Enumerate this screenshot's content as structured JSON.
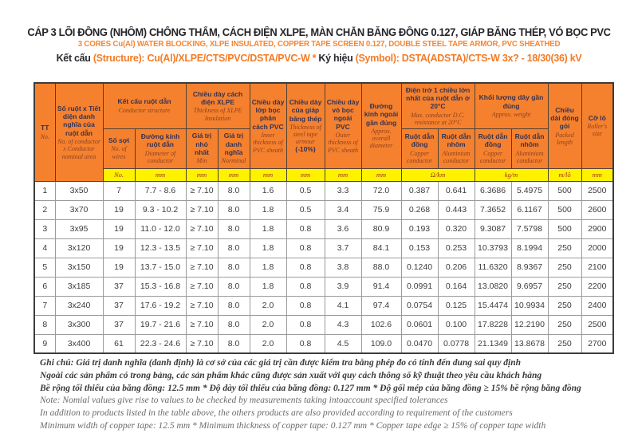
{
  "title": {
    "line1_vi": "CÁP 3 LÕI ĐỒNG (NHÔM) CHỐNG THẤM, CÁCH ĐIỆN XLPE, MÀN CHẮN BĂNG ĐỒNG 0.127, GIÁP BĂNG THÉP,  VỎ BỌC PVC",
    "line2_en": "3 CORES Cu(Al) WATER BLOCKING, XLPE INSULATED, COPPER TAPE SCREEN 0.127, DOUBLE STEEL TAPE ARMOR,  PVC SHEATHED",
    "structure_label": "Kết cấu ",
    "structure_value": "(Structure): Cu(Al)/XLPE/CTS/PVC/DSTA/PVC-W * ",
    "symbol_label": "Ký hiệu ",
    "symbol_value": "(Symbol): DSTA(ADSTA)/CTS-W 3x? - 18/30(36) kV"
  },
  "colors": {
    "header_orange": "#f5812e",
    "units_yellow": "#fff200",
    "accent_orange": "#f47b25",
    "header_text_vi": "#343252",
    "header_text_en": "#8e4020",
    "units_text": "#9e3024"
  },
  "table": {
    "header": {
      "tt": {
        "vi": "TT",
        "en": "No."
      },
      "conductor_area": {
        "vi": "Số ruột x Tiết diện danh nghĩa của ruột dẫn",
        "en": "No. of conductor x Conductor nominal area"
      },
      "conductor_structure": {
        "vi": "Kết cấu ruột dẫn",
        "en": "Conductor structure"
      },
      "wires": {
        "vi": "Số sợi",
        "en": "No. of wires"
      },
      "diameter": {
        "vi": "Đường kính ruột dẫn",
        "en": "Diameter of conductor"
      },
      "xlpe": {
        "vi": "Chiều dày cách điện XLPE",
        "en": "Thickness of XLPE Insulation"
      },
      "min": {
        "vi": "Giá trị nhỏ nhất",
        "en": "Min"
      },
      "nominal": {
        "vi": "Giá trị danh nghĩa",
        "en": "Norminal"
      },
      "inner_pvc": {
        "vi": "Chiều dày lớp bọc phân cách PVC",
        "en": "Inner thickness of PVC sheath"
      },
      "steel_tape": {
        "vi": "Chiều dày của giáp băng thép",
        "en": "Thickness of steel tape armour",
        "extra": "(-10%)"
      },
      "outer_pvc": {
        "vi": "Chiều dày vỏ bọc ngoài PVC",
        "en": "Outer thickness of PVC sheath"
      },
      "overall_diameter": {
        "vi": "Đường kính ngoài gần đúng",
        "en": "Approx. overall diameter"
      },
      "resistance": {
        "vi": "Điện trở 1 chiều lớn nhất của ruột dẫn ở 20°C",
        "en": "Max. conductor D.C. resistance at 20°C"
      },
      "weight": {
        "vi": "Khối lượng dây gần đúng",
        "en": "Approx. weight"
      },
      "copper": {
        "vi": "Ruột dẫn đồng",
        "en": "Copper conductor"
      },
      "aluminium": {
        "vi": "Ruột dẫn nhôm",
        "en": "Aluminium conductor"
      },
      "packed_length": {
        "vi": "Chiều dài đóng gói",
        "en": "Packed length"
      },
      "roller_size": {
        "vi": "Cỡ lô",
        "en": "Roller's size"
      }
    },
    "units": [
      "No.",
      "mm",
      "mm",
      "mm",
      "mm",
      "mm",
      "mm",
      "mm",
      "mm",
      "Ω/km",
      "kg/m",
      "m/lô",
      "mm"
    ],
    "rows": [
      [
        "1",
        "3x50",
        "7",
        "7.7 - 8.6",
        "≥ 7.10",
        "8.0",
        "1.6",
        "0.5",
        "3.3",
        "72.0",
        "0.387",
        "0.641",
        "6.3686",
        "5.4975",
        "500",
        "2500"
      ],
      [
        "2",
        "3x70",
        "19",
        "9.3 - 10.2",
        "≥ 7.10",
        "8.0",
        "1.8",
        "0.5",
        "3.4",
        "75.9",
        "0.268",
        "0.443",
        "7.3652",
        "6.1167",
        "500",
        "2600"
      ],
      [
        "3",
        "3x95",
        "19",
        "11.0 - 12.0",
        "≥ 7.10",
        "8.0",
        "1.8",
        "0.8",
        "3.6",
        "80.9",
        "0.193",
        "0.320",
        "9.3087",
        "7.5798",
        "500",
        "2900"
      ],
      [
        "4",
        "3x120",
        "19",
        "12.3 - 13.5",
        "≥ 7.10",
        "8.0",
        "1.8",
        "0.8",
        "3.7",
        "84.1",
        "0.153",
        "0.253",
        "10.3793",
        "8.1994",
        "250",
        "2000"
      ],
      [
        "5",
        "3x150",
        "19",
        "13.7 - 15.0",
        "≥ 7.10",
        "8.0",
        "1.8",
        "0.8",
        "3.8",
        "88.0",
        "0.1240",
        "0.206",
        "11.6320",
        "8.9367",
        "250",
        "2100"
      ],
      [
        "6",
        "3x185",
        "37",
        "15.3 - 16.8",
        "≥ 7.10",
        "8.0",
        "1.8",
        "0.8",
        "3.9",
        "91.4",
        "0.0991",
        "0.164",
        "13.0820",
        "9.6957",
        "250",
        "2200"
      ],
      [
        "7",
        "3x240",
        "37",
        "17.6 - 19.2",
        "≥ 7.10",
        "8.0",
        "2.0",
        "0.8",
        "4.1",
        "97.4",
        "0.0754",
        "0.125",
        "15.4474",
        "10.9934",
        "250",
        "2400"
      ],
      [
        "8",
        "3x300",
        "37",
        "19.7 - 21.6",
        "≥ 7.10",
        "8.0",
        "2.0",
        "0.8",
        "4.3",
        "102.6",
        "0.0601",
        "0.100",
        "17.8228",
        "12.2190",
        "250",
        "2500"
      ],
      [
        "9",
        "3x400",
        "61",
        "22.3 - 24.6",
        "≥ 7.10",
        "8.0",
        "2.0",
        "0.8",
        "4.5",
        "109.0",
        "0.0470",
        "0.0778",
        "21.1349",
        "13.8678",
        "250",
        "2700"
      ]
    ]
  },
  "notes": {
    "vi": [
      "Ghi chú: Giá trị danh nghĩa (danh định) là cơ sở của các giá trị cần được kiểm tra bằng phép đo có tính đến dung sai quy định",
      "Ngoài các sản phẩm có trong bảng, các sản phẩm khác cũng được sản xuất với quy cách thông số kỹ thuật theo yêu cầu khách hàng",
      "Bề rộng tối thiểu của băng đồng: 12.5 mm * Độ dày tối thiểu của băng đồng: 0.127 mm * Độ gối mép của băng đồng ≥ 15% bề rộng băng đồng"
    ],
    "en": [
      "Note: Nomial values give rise to values to be checked by measurements taking intoaccount specified tolerances",
      "In addition to products listed in the table above, the others products are also provided according to requirement of the customers",
      "Minimum width of copper tape: 12.5 mm * Minimum thickness of copper tape: 0.127 mm * Copper tape edge ≥ 15% of copper tape width"
    ]
  }
}
